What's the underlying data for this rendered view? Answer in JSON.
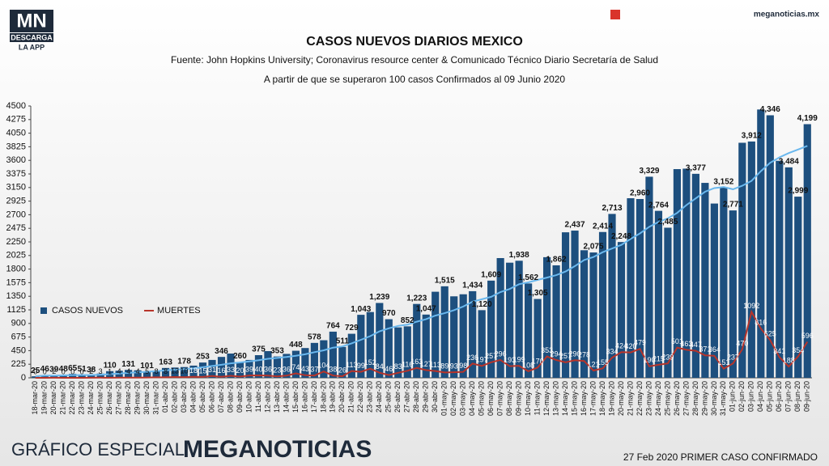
{
  "logo": {
    "mn": "MN",
    "descarga": "DESCARGA",
    "app": "LA APP"
  },
  "site": "meganoticias.mx",
  "footer": {
    "left_a": "GRÁFICO ESPECIAL",
    "left_b": "MEGANOTICIAS",
    "right": "27 Feb 2020 PRIMER CASO CONFIRMADO"
  },
  "chart_data": {
    "type": "bar",
    "title": "CASOS NUEVOS DIARIOS MEXICO",
    "subtitle": "Fuente: John Hopkins University; Coronavirus resource center & Comunicado Técnico Diario Secretaría de Salud",
    "subtitle2": "A partir de que se superaron 100 casos Confirmados al 09 Junio 2020",
    "categories": [
      "18-mar-20",
      "19-mar-20",
      "20-mar-20",
      "21-mar-20",
      "22-mar-20",
      "23-mar-20",
      "24-mar-20",
      "25-mar-20",
      "26-mar-20",
      "27-mar-20",
      "28-mar-20",
      "29-mar-20",
      "30-mar-20",
      "31-mar-20",
      "01-abr-20",
      "02-abr-20",
      "03-abr-20",
      "04-abr-20",
      "05-abr-20",
      "06-abr-20",
      "07-abr-20",
      "08-abr-20",
      "09-abr-20",
      "10-abr-20",
      "11-abr-20",
      "12-abr-20",
      "13-abr-20",
      "14-abr-20",
      "15-abr-20",
      "16-abr-20",
      "17-abr-20",
      "18-abr-20",
      "19-abr-20",
      "20-abr-20",
      "21-abr-20",
      "22-abr-20",
      "23-abr-20",
      "24-abr-20",
      "25-abr-20",
      "26-abr-20",
      "27-abr-20",
      "28-abr-20",
      "29-abr-20",
      "30-abr-20",
      "01-may-20",
      "02-may-20",
      "03-may-20",
      "04-may-20",
      "05-may-20",
      "06-may-20",
      "07-may-20",
      "08-may-20",
      "09-may-20",
      "10-may-20",
      "11-may-20",
      "12-may-20",
      "13-may-20",
      "14-may-20",
      "15-may-20",
      "16-may-20",
      "17-may-20",
      "18-may-20",
      "19-may-20",
      "20-may-20",
      "21-may-20",
      "22-may-20",
      "23-may-20",
      "24-may-20",
      "25-may-20",
      "26-may-20",
      "27-may-20",
      "28-may-20",
      "29-may-20",
      "30-may-20",
      "31-may-20",
      "01-jun-20",
      "02-jun-20",
      "03-jun-20",
      "04-jun-20",
      "05-jun-20",
      "06-jun-20",
      "07-jun-20",
      "08-jun-20",
      "09-jun-20"
    ],
    "series": [
      {
        "name": "CASOS NUEVOS",
        "type": "bar",
        "color": "#1d4f7e",
        "values": [
          25,
          46,
          39,
          48,
          65,
          51,
          38,
          70,
          110,
          117,
          131,
          124,
          101,
          121,
          163,
          170,
          178,
          202,
          253,
          296,
          346,
          402,
          260,
          296,
          375,
          442,
          353,
          396,
          448,
          493,
          578,
          622,
          764,
          511,
          729,
          1043,
          1089,
          1239,
          970,
          835,
          852,
          1223,
          1047,
          1425,
          1515,
          1349,
          1383,
          1434,
          1120,
          1609,
          1982,
          1906,
          1938,
          1562,
          1305,
          1997,
          1862,
          2409,
          2437,
          2112,
          2075,
          2414,
          2713,
          2248,
          2973,
          2960,
          3329,
          2764,
          2485,
          3455,
          3463,
          3377,
          3227,
          2885,
          3152,
          2771,
          3891,
          3912,
          4442,
          4346,
          3593,
          3484,
          2999,
          4199
        ],
        "value_labels": [
          "25",
          "46",
          "39",
          "48",
          "65",
          "51",
          "38",
          null,
          "110",
          null,
          "131",
          null,
          "101",
          null,
          "163",
          null,
          "178",
          null,
          "253",
          null,
          "346",
          null,
          "260",
          null,
          "375",
          null,
          "353",
          null,
          "448",
          null,
          "578",
          null,
          "764",
          "511",
          "729",
          "1,043",
          null,
          "1,239",
          "970",
          null,
          "852",
          "1,223",
          "1,047",
          null,
          "1,515",
          null,
          null,
          "1,434",
          "1,120",
          "1,609",
          null,
          null,
          "1,938",
          "1,562",
          "1,305",
          null,
          "1,862",
          null,
          "2,437",
          null,
          "2,075",
          "2,414",
          "2,713",
          "2,248",
          null,
          "2,960",
          "3,329",
          "2,764",
          "2,485",
          null,
          null,
          "3,377",
          null,
          null,
          "3,152",
          "2,771",
          null,
          "3,912",
          null,
          "4,346",
          null,
          "3,484",
          "2,999",
          "4,199"
        ]
      },
      {
        "name": "MUERTES",
        "type": "line",
        "color": "#b8342a",
        "values": [
          0,
          0,
          2,
          0,
          0,
          0,
          2,
          3,
          1,
          4,
          4,
          4,
          5,
          8,
          8,
          13,
          10,
          18,
          15,
          31,
          16,
          33,
          20,
          39,
          40,
          36,
          23,
          36,
          74,
          43,
          37,
          104,
          38,
          26,
          113,
          99,
          152,
          84,
          46,
          83,
          116,
          163,
          127,
          113,
          89,
          93,
          98,
          236,
          197,
          257,
          296,
          193,
          199,
          108,
          170,
          353,
          294,
          257,
          290,
          278,
          121,
          155,
          334,
          424,
          420,
          479,
          190,
          215,
          239,
          501,
          463,
          447,
          371,
          364,
          151,
          237,
          470,
          1092,
          816,
          625,
          341,
          188,
          354,
          596
        ]
      },
      {
        "type": "line",
        "color": "#6ab8ee",
        "values": [
          25,
          36,
          37,
          40,
          45,
          46,
          45,
          52,
          60,
          70,
          82,
          90,
          100,
          110,
          125,
          135,
          145,
          155,
          175,
          195,
          215,
          240,
          255,
          270,
          290,
          315,
          330,
          345,
          365,
          390,
          425,
          455,
          500,
          520,
          570,
          630,
          690,
          770,
          820,
          860,
          880,
          930,
          970,
          1030,
          1070,
          1120,
          1180,
          1260,
          1300,
          1340,
          1420,
          1470,
          1550,
          1580,
          1620,
          1660,
          1700,
          1760,
          1850,
          1950,
          2000,
          2080,
          2140,
          2200,
          2300,
          2390,
          2500,
          2580,
          2640,
          2730,
          2860,
          2970,
          3080,
          3140,
          3160,
          3120,
          3180,
          3260,
          3420,
          3560,
          3650,
          3720,
          3780,
          3840
        ]
      }
    ],
    "ylim": [
      0,
      4500
    ],
    "yticks": [
      0,
      225,
      450,
      675,
      900,
      1125,
      1350,
      1575,
      1800,
      2025,
      2250,
      2475,
      2700,
      2925,
      3150,
      3375,
      3600,
      3825,
      4050,
      4275,
      4500
    ],
    "legend": "left"
  }
}
